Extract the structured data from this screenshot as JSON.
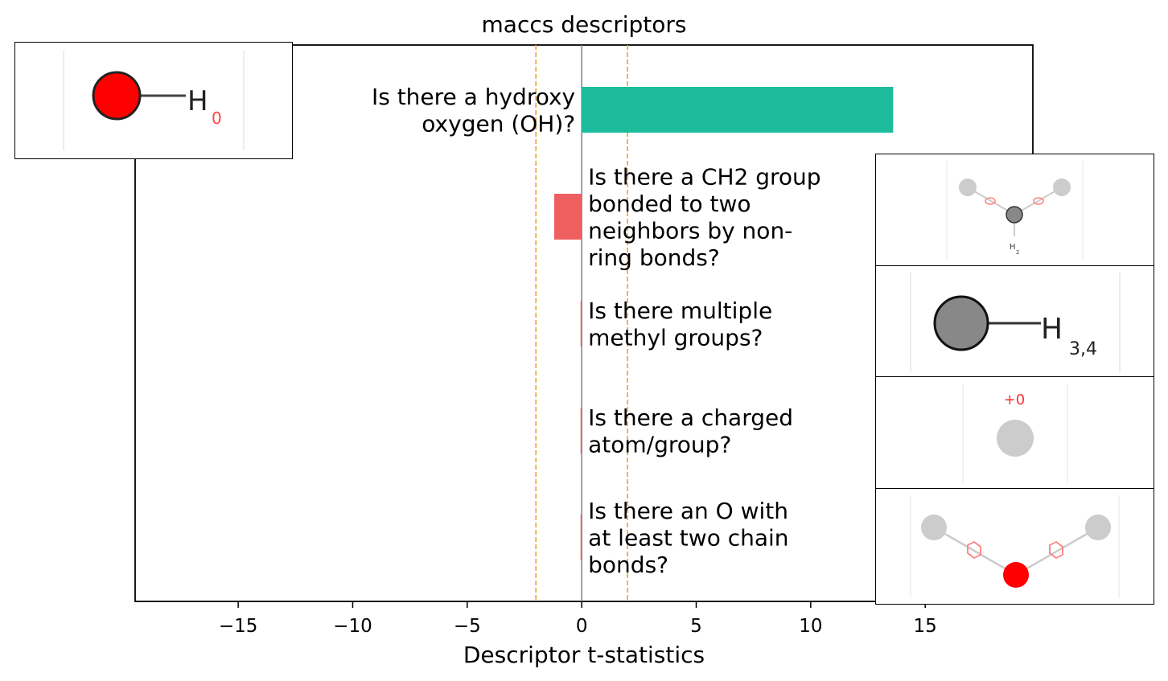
{
  "chart_data": {
    "type": "bar",
    "orientation": "horizontal",
    "title": "maccs descriptors",
    "xlabel": "Descriptor t-statistics",
    "ylabel": "",
    "xlim": [
      -19.5,
      19.7
    ],
    "xticks": [
      -15,
      -10,
      -5,
      0,
      5,
      10,
      15
    ],
    "xtick_labels": [
      "−15",
      "−10",
      "−5",
      "0",
      "5",
      "10",
      "15"
    ],
    "threshold_lines": [
      -2,
      2
    ],
    "grid": false,
    "categories": [
      "Is there a hydroxy oxygen (OH)?",
      "Is there a CH2 group bonded to two neighbors by non-ring bonds?",
      "Is there multiple methyl groups?",
      "Is there a charged atom/group?",
      "Is there an O with at least two chain bonds?"
    ],
    "label_lines": [
      [
        "Is there a hydroxy",
        "oxygen (OH)?"
      ],
      [
        "Is there a CH2 group",
        "bonded to two",
        "neighbors by non-",
        "ring bonds?"
      ],
      [
        "Is there multiple",
        "methyl groups?"
      ],
      [
        "Is there a charged",
        "atom/group?"
      ],
      [
        "Is there an O with",
        "at least two chain",
        "bonds?"
      ]
    ],
    "values": [
      13.6,
      -1.2,
      -0.05,
      -0.05,
      -0.05
    ],
    "colors": {
      "positive": "#1dbc9c",
      "negative": "#f05f5f",
      "threshold": "#f0a030",
      "zero_line": "#808080"
    }
  },
  "structures": [
    {
      "atom": "O",
      "atom_color": "#ff0000",
      "h_label": "H",
      "h_sub": "0"
    },
    {
      "atom": "C",
      "atom_color": "#888888",
      "h_label": "H",
      "h_sub": "2"
    },
    {
      "atom": "C",
      "atom_color": "#888888",
      "h_label": "H",
      "h_sub": "3,4"
    },
    {
      "atom": "*",
      "atom_color": "#cccccc",
      "charge_label": "+0"
    },
    {
      "atom": "O",
      "atom_color": "#ff0000"
    }
  ]
}
